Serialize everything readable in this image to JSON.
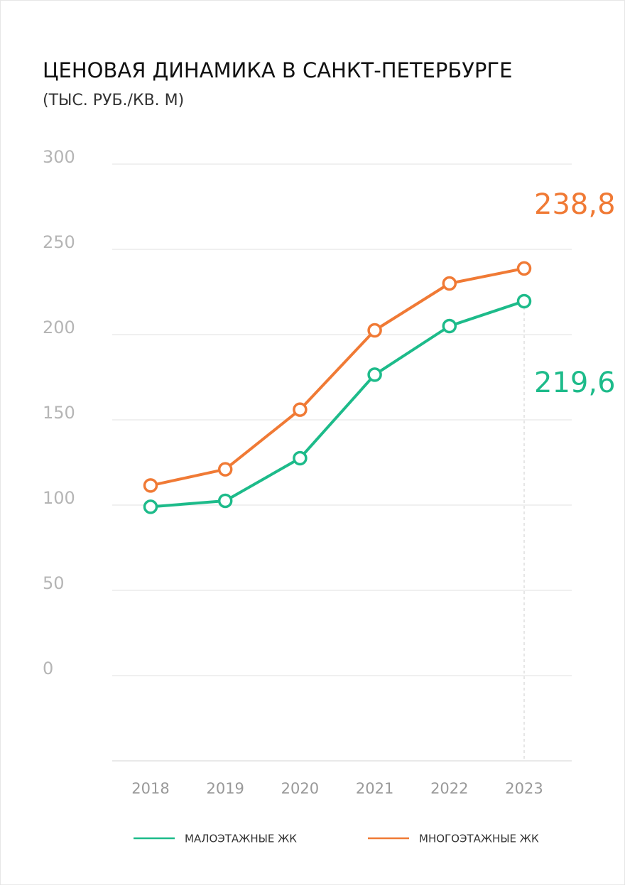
{
  "chart_data": {
    "type": "line",
    "title": "ЦЕНОВАЯ ДИНАМИКА В САНКТ-ПЕТЕРБУРГЕ",
    "subtitle": "(ТЫС. РУБ./КВ. М)",
    "categories": [
      "2018",
      "2019",
      "2020",
      "2021",
      "2022",
      "2023"
    ],
    "series": [
      {
        "name": "МАЛОЭТАЖНЫЕ ЖК",
        "color": "#1dbb8a",
        "values": [
          99,
          102.5,
          127.5,
          176.5,
          205,
          219.6
        ],
        "value_labels": [
          null,
          null,
          null,
          null,
          null,
          "219,6"
        ]
      },
      {
        "name": "МНОГОЭТАЖНЫЕ ЖК",
        "color": "#f07a35",
        "values": [
          111.5,
          121,
          156,
          202.5,
          230,
          238.8
        ],
        "value_labels": [
          null,
          null,
          null,
          null,
          null,
          "238,8"
        ]
      }
    ],
    "ylim": [
      -50,
      300
    ],
    "yticks": [
      0,
      50,
      100,
      150,
      200,
      250,
      300
    ],
    "grid": true
  }
}
